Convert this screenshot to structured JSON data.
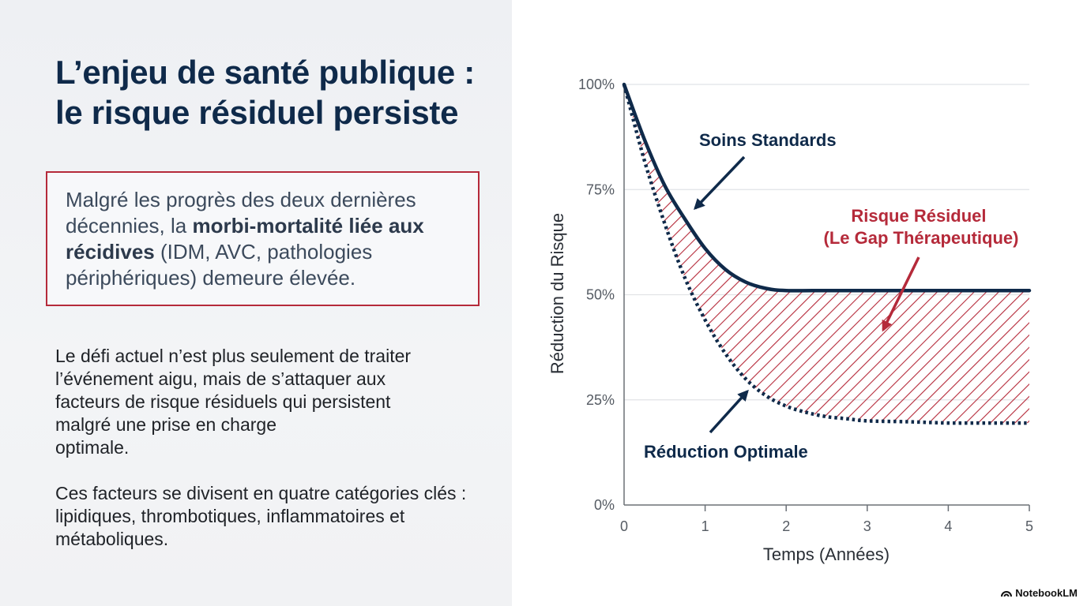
{
  "slide": {
    "title_line1": "L’enjeu de santé publique :",
    "title_line2": "le risque résiduel persiste",
    "callout": {
      "pre": "Malgré les progrès des deux dernières décennies, la ",
      "bold": "morbi-mortalité liée aux récidives",
      "post": " (IDM, AVC, pathologies périphériques) demeure élevée."
    },
    "para1_lines": [
      "Le défi actuel n’est plus seulement de traiter",
      "l’événement aigu, mais de s’attaquer aux",
      "facteurs de risque résiduels qui persistent",
      "malgré une prise en charge",
      "optimale."
    ],
    "para2": "Ces facteurs se divisent en quatre catégories clés : lipidiques, thrombotiques, inflammatoires et métaboliques."
  },
  "brand": {
    "label": "NotebookLM"
  },
  "colors": {
    "navy": "#0f2a4a",
    "red": "#b52a3a",
    "grid": "#e1e3e6"
  },
  "chart_data": {
    "type": "line",
    "title": "",
    "xlabel": "Temps (Années)",
    "ylabel": "Réduction du Risque",
    "xlim": [
      0,
      5
    ],
    "ylim": [
      0,
      100
    ],
    "x_ticks": [
      "0",
      "1",
      "2",
      "3",
      "4",
      "5"
    ],
    "y_ticks": [
      "0%",
      "25%",
      "50%",
      "75%",
      "100%"
    ],
    "grid": "horizontal",
    "series": [
      {
        "name": "Soins Standards",
        "style": "solid",
        "x": [
          0,
          0.25,
          0.5,
          0.75,
          1,
          1.25,
          1.5,
          1.75,
          2,
          2.5,
          3,
          3.5,
          4,
          4.5,
          5
        ],
        "values": [
          100,
          87,
          76,
          68,
          61,
          56,
          53,
          51.5,
          51,
          51,
          51,
          51,
          51,
          51,
          51
        ]
      },
      {
        "name": "Réduction Optimale",
        "style": "dotted",
        "x": [
          0,
          0.25,
          0.5,
          0.75,
          1,
          1.25,
          1.5,
          1.75,
          2,
          2.25,
          2.5,
          2.75,
          3,
          3.5,
          4,
          4.5,
          5
        ],
        "values": [
          100,
          82,
          67,
          54,
          44,
          36,
          30,
          26,
          23.5,
          22,
          21,
          20.5,
          20,
          19.8,
          19.5,
          19.5,
          19.5
        ]
      }
    ],
    "shaded_region": {
      "between": [
        "Soins Standards",
        "Réduction Optimale"
      ],
      "label": "Risque Résiduel (Le Gap Thérapeutique)",
      "fill": "hatched"
    },
    "annotations": [
      {
        "text": "Soins Standards",
        "target_series": "Soins Standards"
      },
      {
        "text_lines": [
          "Risque Résiduel",
          "(Le Gap Thérapeutique)"
        ],
        "target": "shaded_region"
      },
      {
        "text": "Réduction Optimale",
        "target_series": "Réduction Optimale"
      }
    ]
  }
}
